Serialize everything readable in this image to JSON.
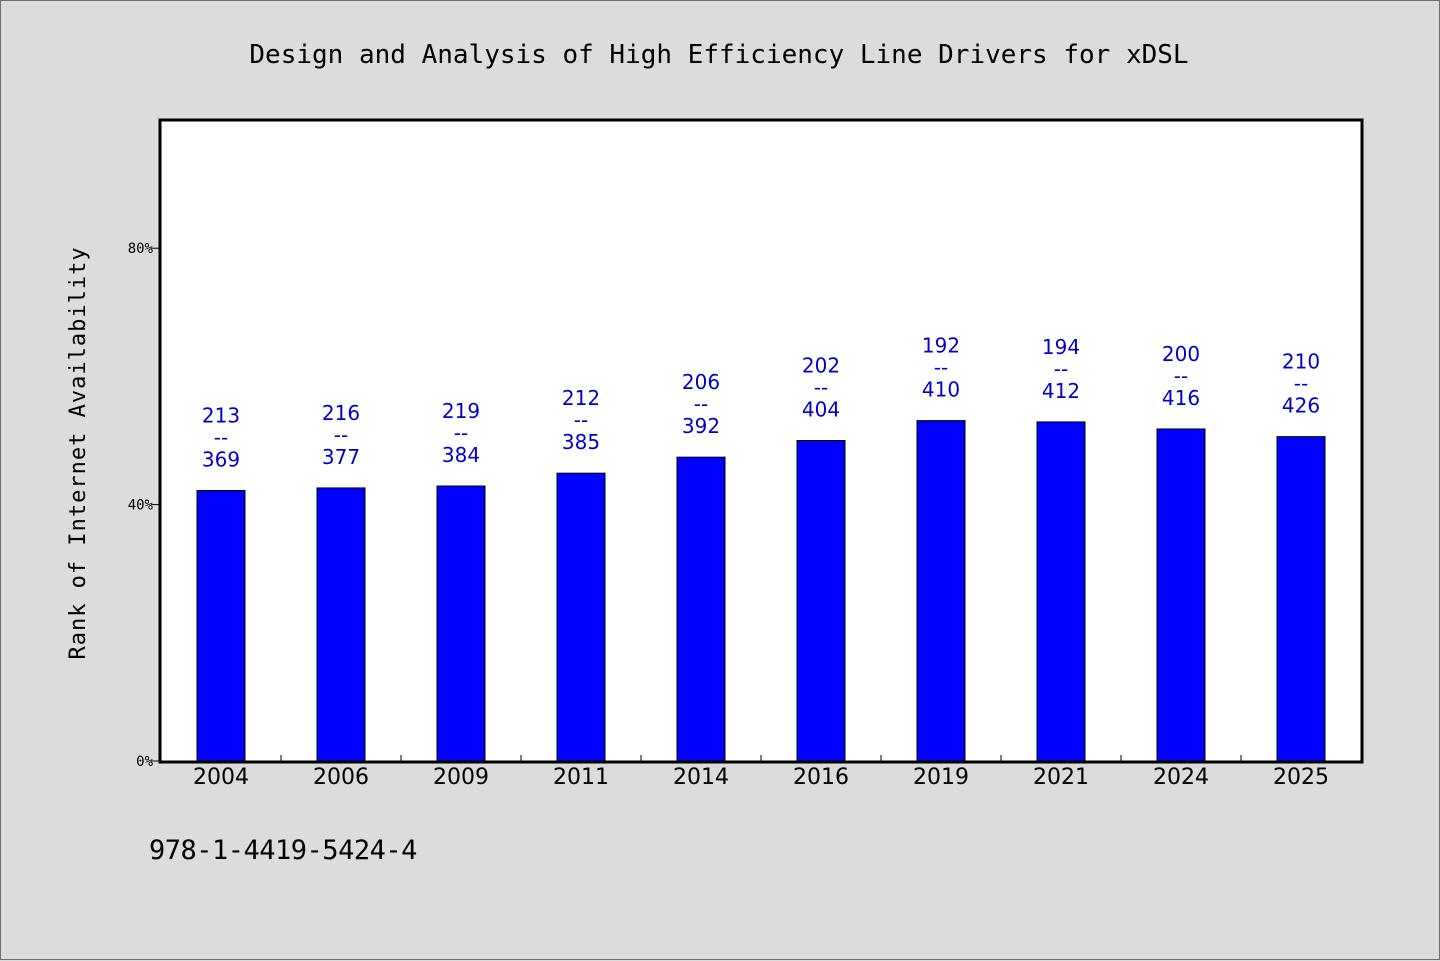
{
  "footer": {
    "code": "978-1-4419-5424-4"
  },
  "chart_data": {
    "type": "bar",
    "title": "Design and Analysis of High Efficiency Line Drivers for xDSL",
    "xlabel": "",
    "ylabel": "Rank of Internet Availability",
    "ylim": [
      0,
      100
    ],
    "yticks": [
      {
        "value": 0,
        "label": "0%"
      },
      {
        "value": 40,
        "label": "40%"
      },
      {
        "value": 80,
        "label": "80%"
      }
    ],
    "grid": false,
    "legend": "none",
    "bar_color": "#0000ff",
    "label_color": "#0000cc",
    "categories": [
      "2004",
      "2006",
      "2009",
      "2011",
      "2014",
      "2016",
      "2019",
      "2021",
      "2024",
      "2025"
    ],
    "values": [
      42.2,
      42.6,
      42.9,
      44.9,
      47.4,
      50.0,
      53.1,
      52.9,
      51.8,
      50.6
    ],
    "data_labels": [
      [
        "213",
        "--",
        "369"
      ],
      [
        "216",
        "--",
        "377"
      ],
      [
        "219",
        "--",
        "384"
      ],
      [
        "212",
        "--",
        "385"
      ],
      [
        "206",
        "--",
        "392"
      ],
      [
        "202",
        "--",
        "404"
      ],
      [
        "192",
        "--",
        "410"
      ],
      [
        "194",
        "--",
        "412"
      ],
      [
        "200",
        "--",
        "416"
      ],
      [
        "210",
        "--",
        "426"
      ]
    ]
  }
}
